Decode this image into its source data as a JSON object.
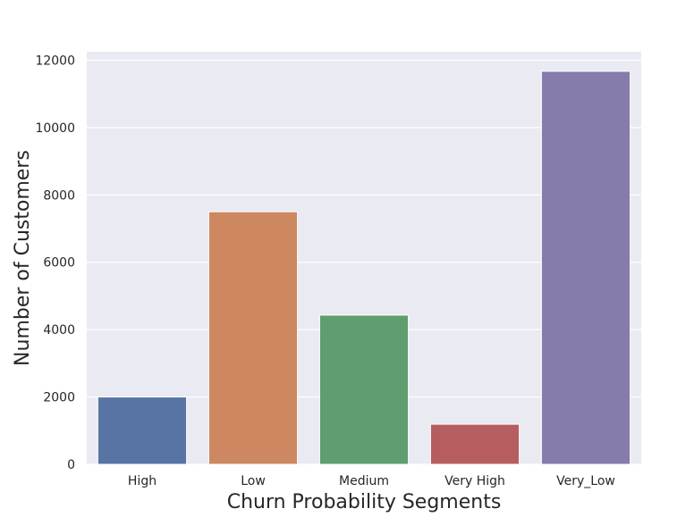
{
  "chart_data": {
    "type": "bar",
    "categories": [
      "High",
      "Low",
      "Medium",
      "Very High",
      "Very_Low"
    ],
    "values": [
      2000,
      7500,
      4430,
      1190,
      11670
    ],
    "xlabel": "Churn Probability Segments",
    "ylabel": "Number of Customers",
    "ylim": [
      0,
      12250
    ],
    "yticks": [
      0,
      2000,
      4000,
      6000,
      8000,
      10000,
      12000
    ],
    "ytick_labels": [
      "0",
      "2000",
      "4000",
      "6000",
      "8000",
      "10000",
      "12000"
    ],
    "grid": true,
    "colors": [
      "#5874a5",
      "#cd8862",
      "#5f9e6e",
      "#b65d60",
      "#867bab"
    ],
    "background": "#eaeaf2"
  }
}
